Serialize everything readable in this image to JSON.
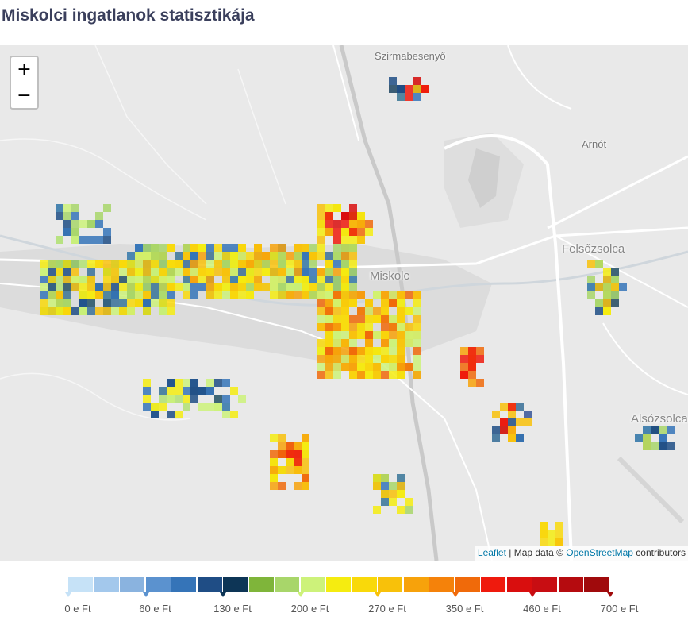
{
  "title": "Miskolci ingatlanok statisztikája",
  "zoom": {
    "in": "+",
    "out": "−"
  },
  "attribution": {
    "leaflet": "Leaflet",
    "sep": " | Map data © ",
    "osm": "OpenStreetMap",
    "tail": " contributors"
  },
  "places": [
    {
      "name": "Szirmabesenyő",
      "cls": ""
    },
    {
      "name": "Arnót",
      "cls": ""
    },
    {
      "name": "Felsőzsolca",
      "cls": "big"
    },
    {
      "name": "Miskolc",
      "cls": "big"
    },
    {
      "name": "Alsózsolca",
      "cls": "big"
    }
  ],
  "legend": {
    "colors": [
      "#c6e2f7",
      "#a3c8ec",
      "#8ab3df",
      "#5b92cf",
      "#3574b8",
      "#1f4d85",
      "#0d3556",
      "#7fb53a",
      "#a8d66a",
      "#cdf27a",
      "#f5ec10",
      "#f9d90a",
      "#f8c10a",
      "#f7a20b",
      "#f5820a",
      "#f06a0a",
      "#ef1a0d",
      "#d90e0e",
      "#c80d12",
      "#b50b0f",
      "#a00a0c"
    ],
    "labels": [
      "0 e Ft",
      "60 e Ft",
      "130 e Ft",
      "200 e Ft",
      "270 e Ft",
      "350 e Ft",
      "460 e Ft",
      "700 e Ft"
    ]
  }
}
